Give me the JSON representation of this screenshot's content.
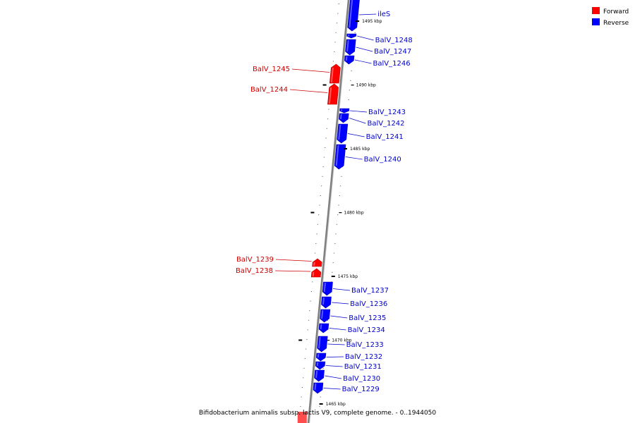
{
  "colors": {
    "forward": "#ff0000",
    "forward_label": "#cc0000",
    "reverse": "#0000ff",
    "reverse_label": "#0000cc",
    "backbone": "#808080"
  },
  "legend": {
    "forward_label": "Forward",
    "reverse_label": "Reverse"
  },
  "caption": "Bifidobacterium animalis subsp. lactis V9, complete genome. - 0..1944050",
  "kbp_marks": [
    {
      "label": "1495 kbp",
      "kbp": 1495
    },
    {
      "label": "1490 kbp",
      "kbp": 1490
    },
    {
      "label": "1485 kbp",
      "kbp": 1485
    },
    {
      "label": "1480 kbp",
      "kbp": 1480
    },
    {
      "label": "1475 kbp",
      "kbp": 1475
    },
    {
      "label": "1470 kbp",
      "kbp": 1470
    },
    {
      "label": "1465 kbp",
      "kbp": 1465
    }
  ],
  "genes": [
    {
      "name": "ileS",
      "strand": "reverse"
    },
    {
      "name": "BalV_1248",
      "strand": "reverse"
    },
    {
      "name": "BalV_1247",
      "strand": "reverse"
    },
    {
      "name": "BalV_1246",
      "strand": "reverse"
    },
    {
      "name": "BalV_1245",
      "strand": "forward"
    },
    {
      "name": "BalV_1244",
      "strand": "forward"
    },
    {
      "name": "BalV_1243",
      "strand": "reverse"
    },
    {
      "name": "BalV_1242",
      "strand": "reverse"
    },
    {
      "name": "BalV_1241",
      "strand": "reverse"
    },
    {
      "name": "BalV_1240",
      "strand": "reverse"
    },
    {
      "name": "BalV_1239",
      "strand": "forward"
    },
    {
      "name": "BalV_1238",
      "strand": "forward"
    },
    {
      "name": "BalV_1237",
      "strand": "reverse"
    },
    {
      "name": "BalV_1236",
      "strand": "reverse"
    },
    {
      "name": "BalV_1235",
      "strand": "reverse"
    },
    {
      "name": "BalV_1234",
      "strand": "reverse"
    },
    {
      "name": "BalV_1233",
      "strand": "reverse"
    },
    {
      "name": "BalV_1232",
      "strand": "reverse"
    },
    {
      "name": "BalV_1231",
      "strand": "reverse"
    },
    {
      "name": "BalV_1230",
      "strand": "reverse"
    },
    {
      "name": "BalV_1229",
      "strand": "reverse"
    }
  ]
}
